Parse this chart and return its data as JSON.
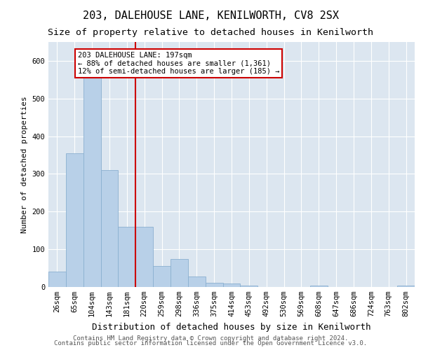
{
  "title1": "203, DALEHOUSE LANE, KENILWORTH, CV8 2SX",
  "title2": "Size of property relative to detached houses in Kenilworth",
  "xlabel": "Distribution of detached houses by size in Kenilworth",
  "ylabel": "Number of detached properties",
  "categories": [
    "26sqm",
    "65sqm",
    "104sqm",
    "143sqm",
    "181sqm",
    "220sqm",
    "259sqm",
    "298sqm",
    "336sqm",
    "375sqm",
    "414sqm",
    "453sqm",
    "492sqm",
    "530sqm",
    "569sqm",
    "608sqm",
    "647sqm",
    "686sqm",
    "724sqm",
    "763sqm",
    "802sqm"
  ],
  "values": [
    40,
    355,
    570,
    310,
    160,
    160,
    55,
    75,
    28,
    12,
    10,
    3,
    0,
    0,
    0,
    3,
    0,
    0,
    0,
    0,
    3
  ],
  "bar_color": "#b8d0e8",
  "bar_edge_color": "#8ab0d0",
  "vline_color": "#cc0000",
  "vline_x": 4.5,
  "annotation_line1": "203 DALEHOUSE LANE: 197sqm",
  "annotation_line2": "← 88% of detached houses are smaller (1,361)",
  "annotation_line3": "12% of semi-detached houses are larger (185) →",
  "annotation_box_color": "#ffffff",
  "annotation_box_edge": "#cc0000",
  "ylim": [
    0,
    650
  ],
  "yticks": [
    0,
    100,
    200,
    300,
    400,
    500,
    600
  ],
  "bg_color": "#dce6f0",
  "footer1": "Contains HM Land Registry data © Crown copyright and database right 2024.",
  "footer2": "Contains public sector information licensed under the Open Government Licence v3.0.",
  "title1_fontsize": 11,
  "title2_fontsize": 9.5,
  "xlabel_fontsize": 9,
  "ylabel_fontsize": 8,
  "tick_fontsize": 7.5,
  "annot_fontsize": 7.5,
  "footer_fontsize": 6.5
}
